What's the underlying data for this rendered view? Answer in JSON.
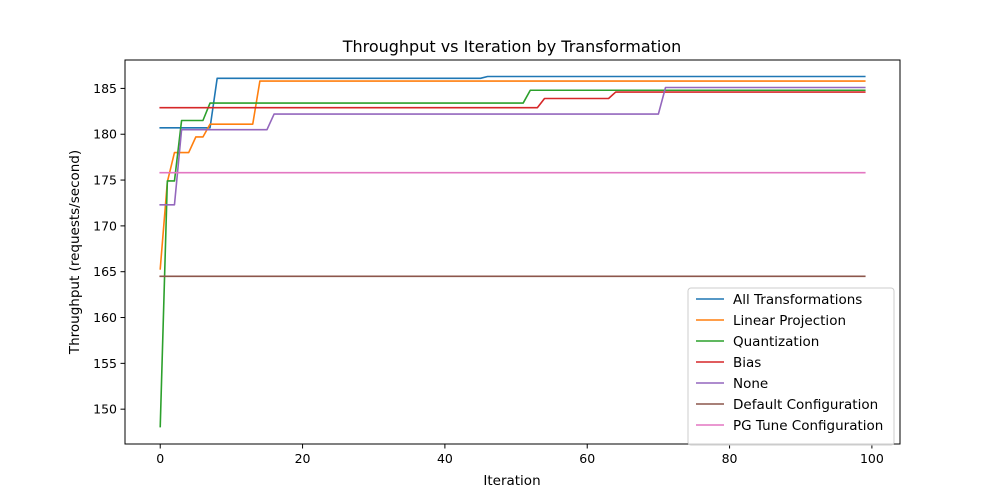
{
  "chart_data": {
    "type": "line",
    "title": "Throughput vs Iteration by Transformation",
    "xlabel": "Iteration",
    "ylabel": "Throughput (requests/second)",
    "xlim": [
      -4.95,
      103.95
    ],
    "ylim": [
      146.2,
      188.1
    ],
    "xticks": [
      0,
      20,
      40,
      60,
      80,
      100
    ],
    "yticks": [
      150,
      155,
      160,
      165,
      170,
      175,
      180,
      185
    ],
    "grid": false,
    "legend_position": "lower-right",
    "series": [
      {
        "name": "All Transformations",
        "color": "#1f77b4",
        "points": [
          [
            0,
            180.7
          ],
          [
            7,
            180.7
          ],
          [
            8,
            186.1
          ],
          [
            45,
            186.1
          ],
          [
            46,
            186.3
          ],
          [
            99,
            186.3
          ]
        ]
      },
      {
        "name": "Linear Projection",
        "color": "#ff7f0e",
        "points": [
          [
            0,
            165.3
          ],
          [
            1,
            174.8
          ],
          [
            2,
            178.0
          ],
          [
            4,
            178.0
          ],
          [
            5,
            179.7
          ],
          [
            6,
            179.7
          ],
          [
            7,
            181.1
          ],
          [
            13,
            181.1
          ],
          [
            14,
            185.8
          ],
          [
            99,
            185.8
          ]
        ]
      },
      {
        "name": "Quantization",
        "color": "#2ca02c",
        "points": [
          [
            0,
            148.1
          ],
          [
            1,
            174.9
          ],
          [
            2,
            174.9
          ],
          [
            3,
            181.5
          ],
          [
            6,
            181.5
          ],
          [
            7,
            183.4
          ],
          [
            51,
            183.4
          ],
          [
            52,
            184.8
          ],
          [
            99,
            184.8
          ]
        ]
      },
      {
        "name": "Bias",
        "color": "#d62728",
        "points": [
          [
            0,
            182.9
          ],
          [
            53,
            182.9
          ],
          [
            54,
            183.9
          ],
          [
            63,
            183.9
          ],
          [
            64,
            184.6
          ],
          [
            99,
            184.6
          ]
        ]
      },
      {
        "name": "None",
        "color": "#9467bd",
        "points": [
          [
            0,
            172.3
          ],
          [
            2,
            172.3
          ],
          [
            3,
            180.5
          ],
          [
            15,
            180.5
          ],
          [
            16,
            182.2
          ],
          [
            70,
            182.2
          ],
          [
            71,
            185.1
          ],
          [
            99,
            185.1
          ]
        ]
      },
      {
        "name": "Default Configuration",
        "color": "#8c564b",
        "points": [
          [
            0,
            164.5
          ],
          [
            99,
            164.5
          ]
        ]
      },
      {
        "name": "PG Tune Configuration",
        "color": "#e377c2",
        "points": [
          [
            0,
            175.8
          ],
          [
            99,
            175.8
          ]
        ]
      }
    ]
  }
}
